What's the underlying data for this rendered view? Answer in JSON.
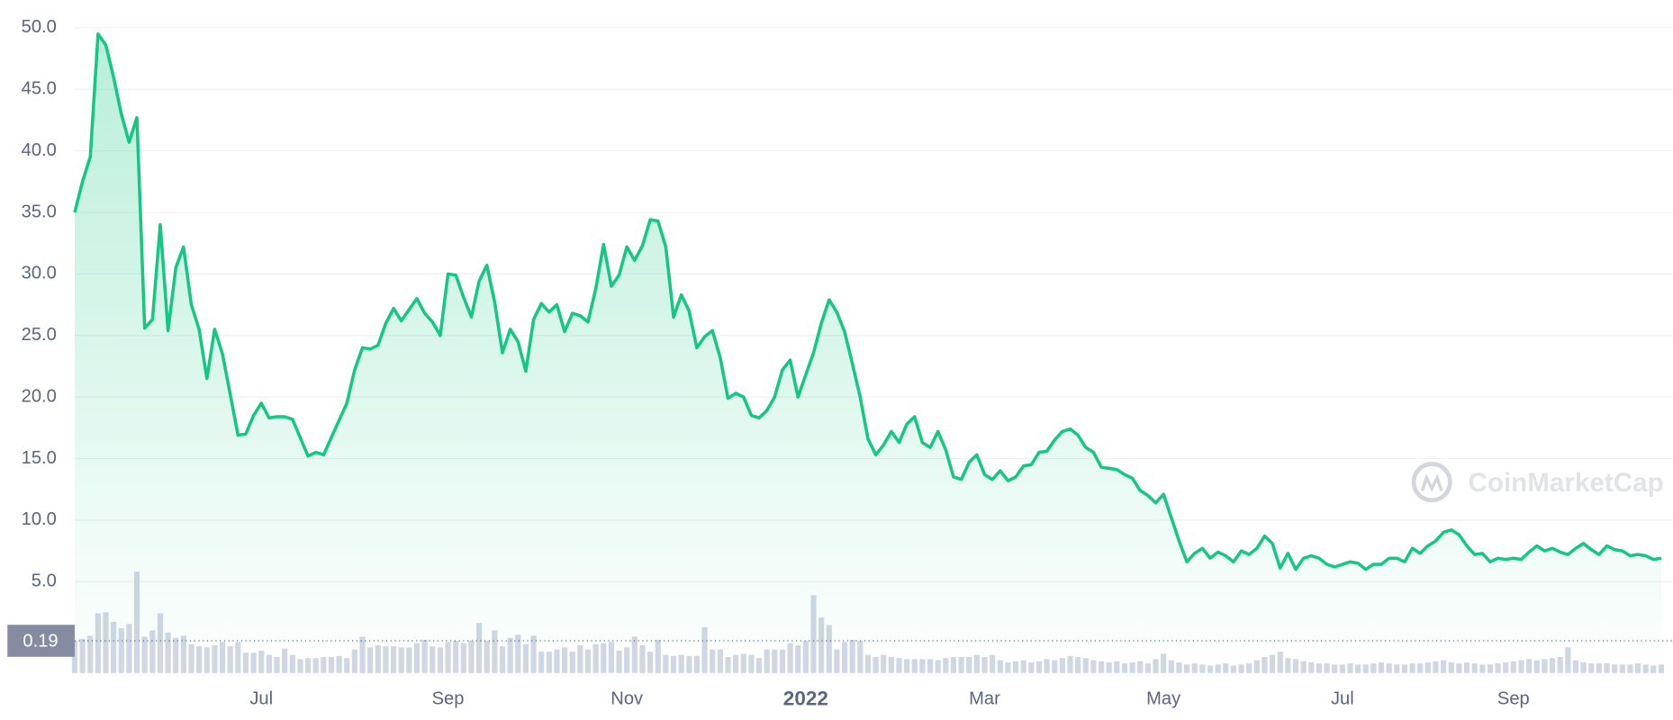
{
  "chart_data": {
    "type": "line",
    "categories": [
      null,
      null,
      null,
      null,
      null,
      null,
      null,
      null,
      null,
      null,
      null,
      null,
      null,
      null,
      null,
      null,
      null,
      null,
      null,
      null,
      null,
      null,
      null,
      null,
      "Jul",
      null,
      null,
      null,
      null,
      null,
      null,
      null,
      null,
      null,
      null,
      null,
      null,
      null,
      null,
      null,
      null,
      null,
      null,
      null,
      null,
      null,
      null,
      null,
      "Sep",
      null,
      null,
      null,
      null,
      null,
      null,
      null,
      null,
      null,
      null,
      null,
      null,
      null,
      null,
      null,
      null,
      null,
      null,
      null,
      null,
      null,
      null,
      "Nov",
      null,
      null,
      null,
      null,
      null,
      null,
      null,
      null,
      null,
      null,
      null,
      null,
      null,
      null,
      null,
      null,
      null,
      null,
      null,
      null,
      null,
      null,
      "2022",
      null,
      null,
      null,
      null,
      null,
      null,
      null,
      null,
      null,
      null,
      null,
      null,
      null,
      null,
      null,
      null,
      null,
      null,
      null,
      null,
      null,
      null,
      "Mar",
      null,
      null,
      null,
      null,
      null,
      null,
      null,
      null,
      null,
      null,
      null,
      null,
      null,
      null,
      null,
      null,
      null,
      null,
      null,
      null,
      null,
      null,
      "May",
      null,
      null,
      null,
      null,
      null,
      null,
      null,
      null,
      null,
      null,
      null,
      null,
      null,
      null,
      null,
      null,
      null,
      null,
      null,
      null,
      null,
      null,
      "Jul",
      null,
      null,
      null,
      null,
      null,
      null,
      null,
      null,
      null,
      null,
      null,
      null,
      null,
      null,
      null,
      null,
      null,
      null,
      null,
      null,
      null,
      "Sep",
      null,
      null,
      null,
      null,
      null,
      null,
      null,
      null,
      null,
      null,
      null,
      null,
      null,
      null,
      null,
      null,
      null,
      null,
      null
    ],
    "series": [
      {
        "color": "#16c784",
        "values": [
          35,
          37.5,
          39.5,
          49.5,
          48.6,
          46,
          43,
          40.7,
          42.7,
          25.6,
          26.3,
          34,
          25.4,
          30.5,
          32.2,
          27.5,
          25.5,
          21.5,
          25.5,
          23.5,
          20.2,
          16.9,
          17,
          18.5,
          19.5,
          18.3,
          18.4,
          18.4,
          18.2,
          16.7,
          15.2,
          15.5,
          15.3,
          16.7,
          18.1,
          19.5,
          22.2,
          24,
          23.9,
          24.2,
          26,
          27.2,
          26.2,
          27.1,
          28,
          26.8,
          26.1,
          25,
          30,
          29.9,
          28.1,
          26.5,
          29.4,
          30.7,
          27.7,
          23.6,
          25.5,
          24.5,
          22.1,
          26.3,
          27.6,
          26.9,
          27.5,
          25.3,
          26.8,
          26.6,
          26.1,
          28.8,
          32.4,
          29,
          29.9,
          32.2,
          31.1,
          32.3,
          34.4,
          34.3,
          32.2,
          26.5,
          28.3,
          27,
          24,
          24.9,
          25.4,
          23.2,
          19.9,
          20.3,
          20,
          18.5,
          18.3,
          18.9,
          20,
          22.2,
          23,
          20,
          21.8,
          23.6,
          26,
          27.9,
          26.9,
          25.3,
          22.7,
          20,
          16.6,
          15.3,
          16.1,
          17.2,
          16.3,
          17.8,
          18.4,
          16.3,
          15.9,
          17.2,
          15.7,
          13.5,
          13.3,
          14.7,
          15.3,
          13.7,
          13.3,
          14,
          13.2,
          13.5,
          14.4,
          14.5,
          15.5,
          15.6,
          16.5,
          17.2,
          17.4,
          16.9,
          15.9,
          15.5,
          14.3,
          14.2,
          14.1,
          13.7,
          13.4,
          12.4,
          12,
          11.4,
          12.1,
          10.2,
          8.3,
          6.6,
          7.3,
          7.7,
          6.9,
          7.4,
          7.1,
          6.6,
          7.5,
          7.2,
          7.7,
          8.7,
          8.1,
          6.1,
          7.3,
          6,
          6.9,
          7.1,
          6.9,
          6.4,
          6.2,
          6.4,
          6.6,
          6.5,
          6,
          6.4,
          6.4,
          6.9,
          6.9,
          6.6,
          7.7,
          7.3,
          7.9,
          8.3,
          9,
          9.2,
          8.8,
          7.9,
          7.2,
          7.3,
          6.6,
          6.9,
          6.8,
          6.9,
          6.8,
          7.4,
          7.9,
          7.5,
          7.7,
          7.4,
          7.2,
          7.7,
          8.1,
          7.6,
          7.2,
          7.9,
          7.6,
          7.5,
          7.1,
          7.2,
          7.1,
          6.8,
          6.9
        ]
      }
    ],
    "volume_color": "#cfd6e4",
    "volume": [
      30,
      32,
      35,
      56,
      57,
      48,
      42,
      46,
      95,
      34,
      40,
      56,
      38,
      33,
      35,
      27,
      25,
      24,
      26,
      29,
      25,
      29,
      19,
      19,
      21,
      17,
      15,
      23,
      17,
      13,
      14,
      14,
      15,
      15,
      16,
      14,
      22,
      34,
      24,
      26,
      25,
      25,
      24,
      24,
      28,
      31,
      25,
      24,
      29,
      30,
      28,
      30,
      47,
      30,
      40,
      25,
      33,
      36,
      27,
      35,
      20,
      20,
      22,
      24,
      20,
      26,
      22,
      27,
      28,
      29,
      21,
      24,
      34,
      26,
      20,
      31,
      17,
      16,
      17,
      16,
      16,
      43,
      22,
      22,
      15,
      17,
      18,
      17,
      14,
      22,
      22,
      22,
      28,
      26,
      30,
      73,
      52,
      45,
      22,
      29,
      31,
      30,
      17,
      15,
      17,
      15,
      14,
      13,
      13,
      13,
      13,
      12,
      14,
      15,
      15,
      15,
      17,
      15,
      17,
      12,
      10,
      11,
      12,
      10,
      11,
      13,
      12,
      14,
      16,
      15,
      14,
      12,
      11,
      10,
      11,
      9,
      10,
      11,
      9,
      13,
      18,
      12,
      10,
      8,
      9,
      8,
      7,
      8,
      9,
      7,
      8,
      9,
      12,
      15,
      17,
      20,
      14,
      13,
      11,
      10,
      9,
      9,
      8,
      8,
      9,
      8,
      8,
      9,
      10,
      9,
      8,
      8,
      9,
      9,
      10,
      11,
      12,
      10,
      9,
      10,
      9,
      8,
      8,
      9,
      10,
      11,
      12,
      13,
      12,
      13,
      14,
      15,
      24,
      12,
      10,
      9,
      9,
      9,
      8,
      8,
      8,
      9,
      8,
      7,
      8
    ],
    "ylim": [
      0,
      50
    ],
    "yticks": [
      {
        "value": 5,
        "label": "5.0"
      },
      {
        "value": 10,
        "label": "10.0"
      },
      {
        "value": 15,
        "label": "15.0"
      },
      {
        "value": 20,
        "label": "20.0"
      },
      {
        "value": 25,
        "label": "25.0"
      },
      {
        "value": 30,
        "label": "30.0"
      },
      {
        "value": 35,
        "label": "35.0"
      },
      {
        "value": 40,
        "label": "40.0"
      },
      {
        "value": 45,
        "label": "45.0"
      },
      {
        "value": 50,
        "label": "50.0"
      }
    ],
    "grid": true,
    "reference": 0.19,
    "watermark": "CoinMarketCap"
  }
}
